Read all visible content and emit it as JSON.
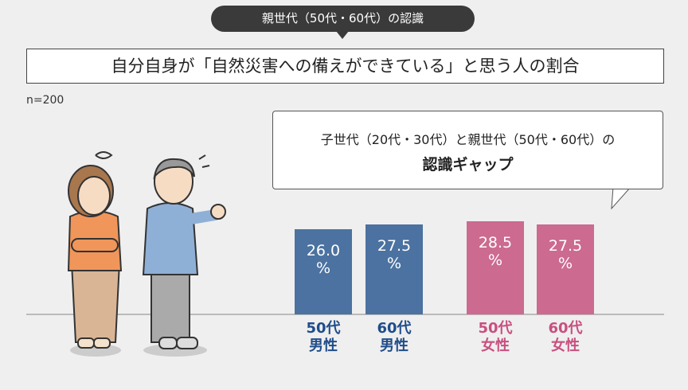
{
  "chart_data": {
    "type": "bar",
    "header": "親世代（50代・60代）の認識",
    "title": "自分自身が「自然災害への備えができている」と思う人の割合",
    "note": "n=200",
    "callout": [
      "子世代（20代・30代）と親世代（50代・60代）の",
      "認識ギャップ"
    ],
    "categories": [
      "50代\n男性",
      "60代\n男性",
      "50代\n女性",
      "60代\n女性"
    ],
    "values": [
      26.0,
      27.5,
      28.5,
      27.5
    ],
    "value_labels": [
      "26.0\n%",
      "27.5\n%",
      "28.5\n%",
      "27.5\n%"
    ],
    "colors": [
      "#4b72a0",
      "#4b72a0",
      "#cc6a8f",
      "#cc6a8f"
    ],
    "label_colors": [
      "#1f4d8a",
      "#1f4d8a",
      "#c8507f",
      "#c8507f"
    ]
  }
}
